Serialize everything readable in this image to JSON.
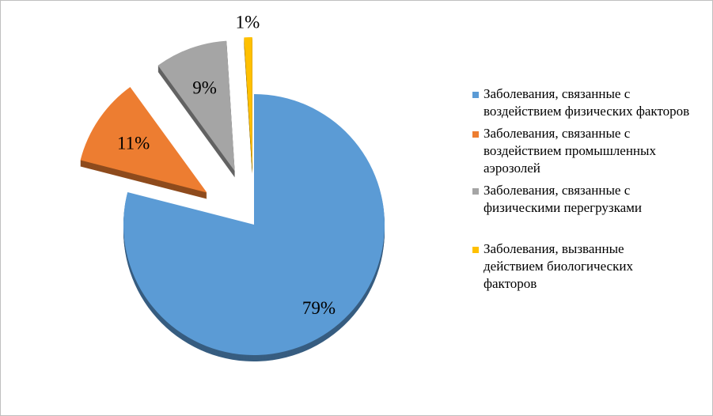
{
  "chart_data": {
    "type": "pie",
    "title": "",
    "exploded": [
      false,
      true,
      true,
      true
    ],
    "series": [
      {
        "name": "Заболевания, связанные с воздействием физических факторов",
        "value": 79,
        "label": "79%",
        "color": "#5b9bd5"
      },
      {
        "name": "Заболевания, связанные с воздействием промышленных аэрозолей",
        "value": 11,
        "label": "11%",
        "color": "#ed7d31"
      },
      {
        "name": "Заболевания, связанные с физическими перегрузками",
        "value": 9,
        "label": "9%",
        "color": "#a5a5a5"
      },
      {
        "name": "Заболевания, вызванные действием биологических факторов",
        "value": 1,
        "label": "1%",
        "color": "#ffc000"
      }
    ],
    "legend_position": "right"
  }
}
